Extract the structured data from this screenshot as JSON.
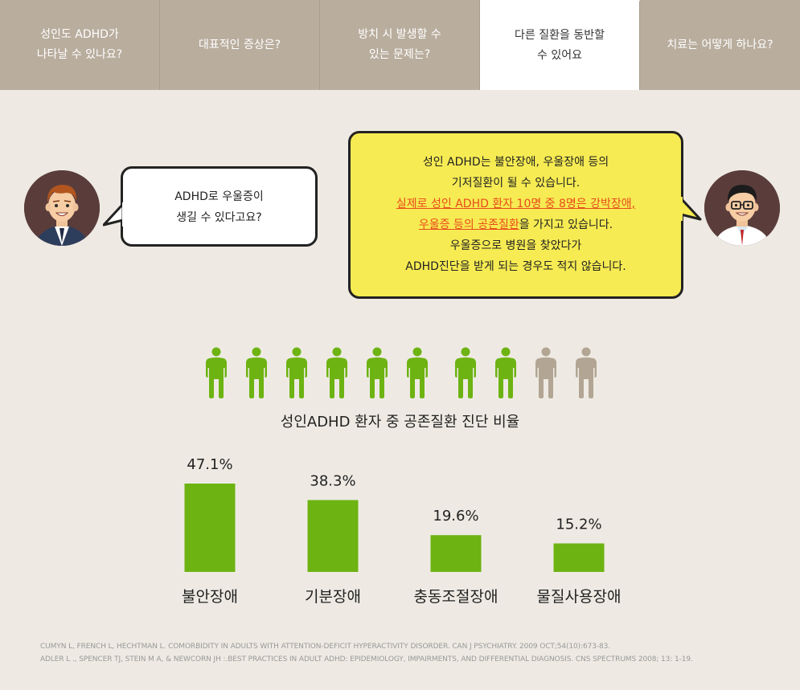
{
  "tabs": [
    {
      "label": "성인도 ADHD가\n나타날 수 있나요?",
      "active": false
    },
    {
      "label": "대표적인 증상은?",
      "active": false
    },
    {
      "label": "방치 시 발생할 수\n있는 문제는?",
      "active": false
    },
    {
      "label": "다른 질환을 동반할\n수 있어요",
      "active": true
    },
    {
      "label": "치료는 어떻게 하나요?",
      "active": false
    }
  ],
  "left_bubble": {
    "line1": "ADHD로 우울증이",
    "line2": "생길 수 있다고요?"
  },
  "right_bubble": {
    "line1": "성인 ADHD는 불안장애, 우울장애 등의",
    "line2": "기저질환이 될 수 있습니다.",
    "highlight1": "실제로 성인 ADHD 환자 10명 중 8명은 강박장애,",
    "highlight2": "우울증 등의 공존질환",
    "line3_rest": "을 가지고 있습니다.",
    "line4": "우울증으로 병원을 찾았다가",
    "line5": "ADHD진단을 받게 되는 경우도 적지 않습니다."
  },
  "people_icons": {
    "total": 10,
    "highlighted": 8,
    "highlight_color": "#6db312",
    "other_color": "#b3a593"
  },
  "chart_title": "성인ADHD 환자 중 공존질환 진단 비율",
  "chart_data": {
    "type": "bar",
    "title": "성인ADHD 환자 중 공존질환 진단 비율",
    "categories": [
      "불안장애",
      "기분장애",
      "충동조절장애",
      "물질사용장애"
    ],
    "values": [
      47.1,
      38.3,
      19.6,
      15.2
    ],
    "value_labels": [
      "47.1%",
      "38.3%",
      "19.6%",
      "15.2%"
    ],
    "bar_color": "#6db312",
    "xlabel": "",
    "ylabel": "",
    "ylim": [
      0,
      47.1
    ],
    "grid": false
  },
  "references": {
    "line1": "CUMYN L, FRENCH L, HECHTMAN L. COMORBIDITY IN ADULTS WITH ATTENTION-DEFICIT HYPERACTIVITY DISORDER. CAN J PSYCHIATRY. 2009 OCT;54(10):673-83.",
    "line2": "ADLER L ., SPENCER TJ, STEIN M A, & NEWCORN JH :.BEST PRACTICES IN ADULT ADHD: EPIDEMIOLOGY, IMPAIRMENTS, AND DIFFERENTIAL DIAGNOSIS. CNS SPECTRUMS 2008; 13: 1-19."
  }
}
